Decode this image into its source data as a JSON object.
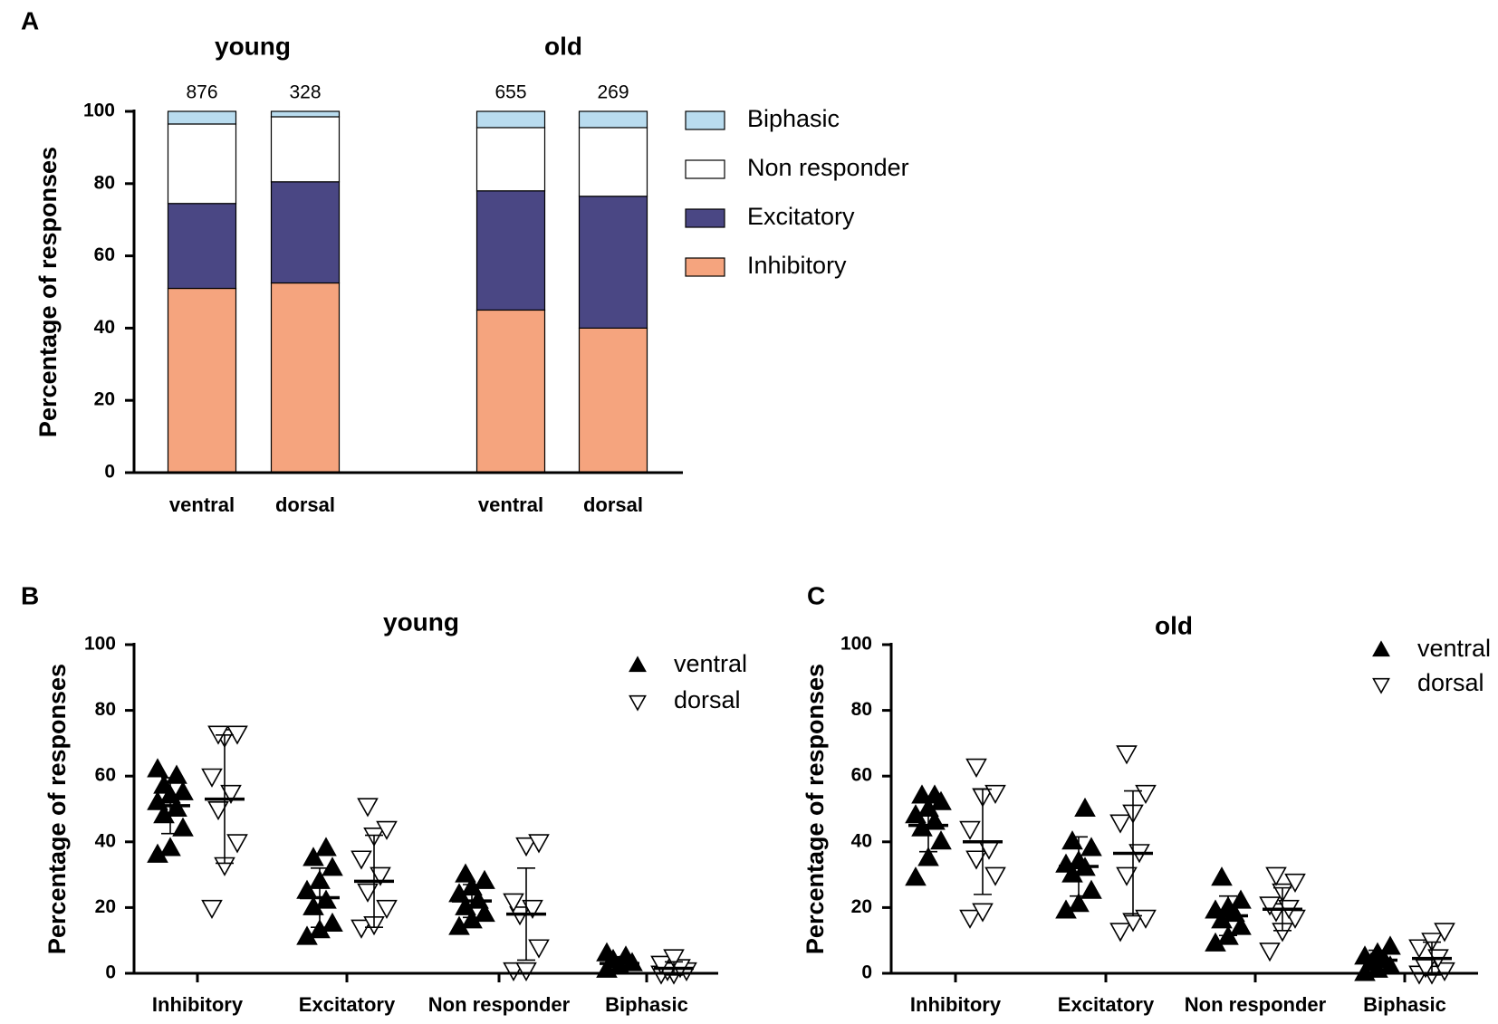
{
  "chart_data": [
    {
      "type": "bar",
      "panel": "A",
      "stacked": true,
      "ylabel": "Percentage of responses",
      "groups": [
        "young",
        "old"
      ],
      "counts": [
        876,
        328,
        655,
        269
      ],
      "categories": [
        "ventral",
        "dorsal",
        "ventral",
        "dorsal"
      ],
      "series": [
        {
          "name": "Inhibitory",
          "color": "#f5a47e",
          "values": [
            51,
            52.5,
            45,
            40
          ]
        },
        {
          "name": "Excitatory",
          "color": "#4a4784",
          "values": [
            23.5,
            28,
            33,
            36.5
          ]
        },
        {
          "name": "Non responder",
          "color": "#ffffff",
          "values": [
            22,
            18,
            17.5,
            19
          ]
        },
        {
          "name": "Biphasic",
          "color": "#b9dcef",
          "values": [
            3.5,
            1.5,
            4.5,
            4.5
          ]
        }
      ],
      "ylim": [
        0,
        100
      ],
      "yticks": [
        0,
        20,
        40,
        60,
        80,
        100
      ],
      "legend": "right"
    },
    {
      "type": "scatter",
      "panel": "B",
      "title": "young",
      "ylabel": "Percentage of responses",
      "categories": [
        "Inhibitory",
        "Excitatory",
        "Non responder",
        "Biphasic"
      ],
      "series": [
        {
          "name": "ventral",
          "color": "#000000",
          "filled": true,
          "values": [
            [
              36,
              38,
              44,
              48,
              50,
              52,
              54,
              55,
              57,
              60,
              62
            ],
            [
              11,
              13,
              15,
              20,
              22,
              25,
              28,
              32,
              35,
              38
            ],
            [
              14,
              16,
              18,
              20,
              22,
              24,
              26,
              28,
              30
            ],
            [
              1,
              2,
              3,
              4,
              5,
              6
            ]
          ],
          "mean": [
            51,
            23,
            22,
            3
          ],
          "sd": [
            8.5,
            9,
            5,
            2
          ]
        },
        {
          "name": "dorsal",
          "color": "#000000",
          "filled": false,
          "values": [
            [
              20,
              33,
              40,
              50,
              55,
              60,
              72,
              73,
              73
            ],
            [
              14,
              15,
              20,
              25,
              30,
              35,
              42,
              44,
              51
            ],
            [
              1,
              1,
              8,
              18,
              20,
              22,
              39,
              40
            ],
            [
              0,
              0,
              1,
              1,
              2,
              3,
              5
            ]
          ],
          "mean": [
            53,
            28,
            18,
            1.5
          ],
          "sd": [
            19.5,
            14,
            14,
            2
          ]
        }
      ],
      "ylim": [
        0,
        100
      ],
      "yticks": [
        0,
        20,
        40,
        60,
        80,
        100
      ],
      "legend": "upper right"
    },
    {
      "type": "scatter",
      "panel": "C",
      "title": "old",
      "ylabel": "Percentage of responses",
      "categories": [
        "Inhibitory",
        "Excitatory",
        "Non responder",
        "Biphasic"
      ],
      "series": [
        {
          "name": "ventral",
          "color": "#000000",
          "filled": true,
          "values": [
            [
              29,
              35,
              40,
              44,
              46,
              48,
              50,
              52,
              54,
              54
            ],
            [
              19,
              21,
              25,
              30,
              32,
              33,
              34,
              38,
              40,
              50
            ],
            [
              9,
              11,
              14,
              16,
              18,
              19,
              20,
              22,
              29
            ],
            [
              0,
              1,
              2,
              3,
              4,
              5,
              6,
              8
            ]
          ],
          "mean": [
            45,
            32.5,
            17.5,
            4
          ],
          "sd": [
            8,
            9,
            6,
            3
          ]
        },
        {
          "name": "dorsal",
          "color": "#000000",
          "filled": false,
          "values": [
            [
              17,
              19,
              30,
              35,
              38,
              44,
              54,
              55,
              63
            ],
            [
              13,
              16,
              17,
              30,
              37,
              46,
              49,
              55,
              67
            ],
            [
              7,
              13,
              17,
              19,
              20,
              21,
              25,
              28,
              30
            ],
            [
              0,
              0,
              1,
              2,
              5,
              8,
              10,
              13
            ]
          ],
          "mean": [
            40,
            36.5,
            19.5,
            4.5
          ],
          "sd": [
            16,
            19,
            6.5,
            5
          ]
        }
      ],
      "ylim": [
        0,
        100
      ],
      "yticks": [
        0,
        20,
        40,
        60,
        80,
        100
      ],
      "legend": "upper right"
    }
  ]
}
